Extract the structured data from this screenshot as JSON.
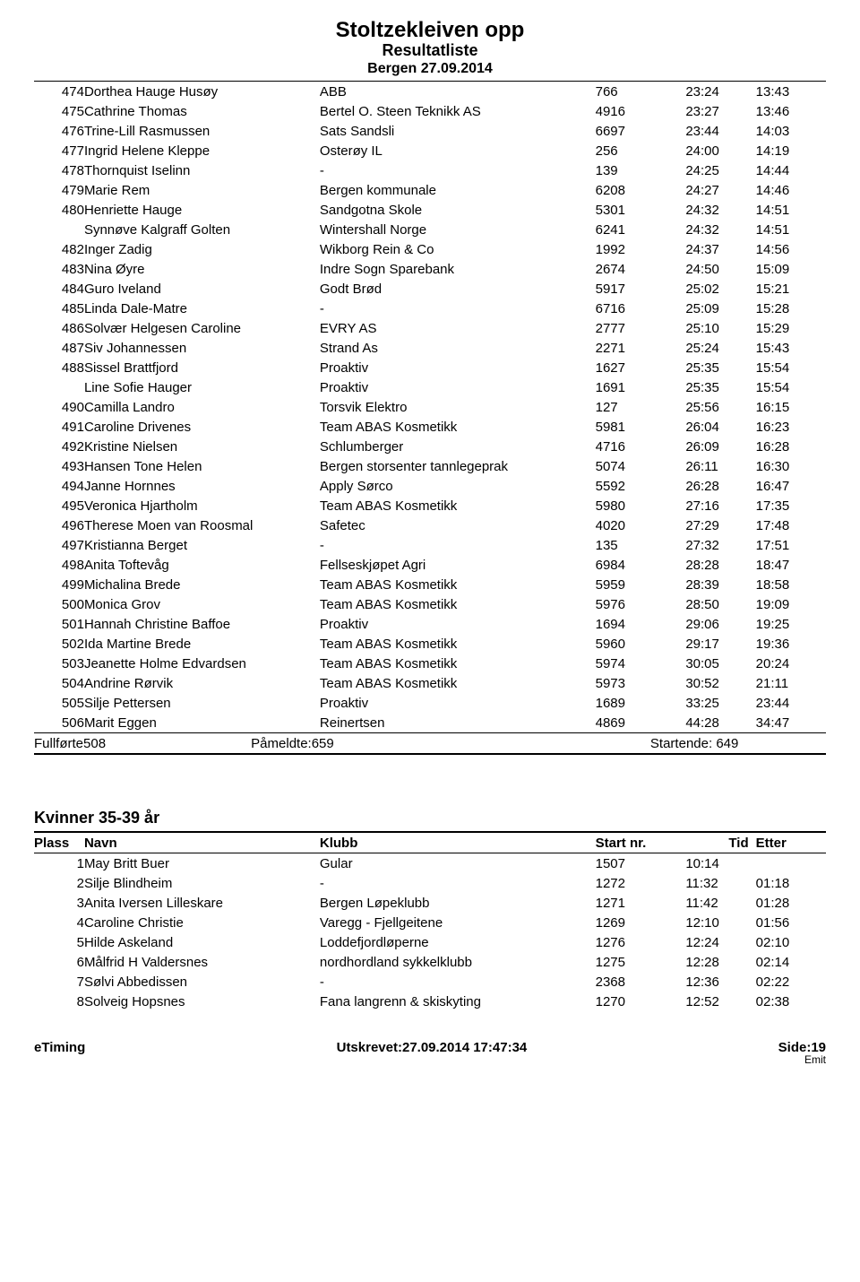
{
  "header": {
    "title": "Stoltzekleiven opp",
    "subtitle": "Resultatliste",
    "date": "Bergen 27.09.2014"
  },
  "columns": {
    "place": "Plass",
    "name": "Navn",
    "club": "Klubb",
    "start": "Start nr.",
    "time": "Tid",
    "diff": "Etter"
  },
  "main_results": [
    {
      "place": "474",
      "name": "Dorthea Hauge Husøy",
      "club": "ABB",
      "start": "766",
      "time": "23:24",
      "diff": "13:43"
    },
    {
      "place": "475",
      "name": "Cathrine Thomas",
      "club": "Bertel O. Steen Teknikk AS",
      "start": "4916",
      "time": "23:27",
      "diff": "13:46"
    },
    {
      "place": "476",
      "name": "Trine-Lill Rasmussen",
      "club": "Sats Sandsli",
      "start": "6697",
      "time": "23:44",
      "diff": "14:03"
    },
    {
      "place": "477",
      "name": "Ingrid Helene Kleppe",
      "club": "Osterøy IL",
      "start": "256",
      "time": "24:00",
      "diff": "14:19"
    },
    {
      "place": "478",
      "name": "Thornquist Iselinn",
      "club": "-",
      "start": "139",
      "time": "24:25",
      "diff": "14:44"
    },
    {
      "place": "479",
      "name": "Marie Rem",
      "club": "Bergen kommunale",
      "start": "6208",
      "time": "24:27",
      "diff": "14:46"
    },
    {
      "place": "480",
      "name": "Henriette Hauge",
      "club": "Sandgotna Skole",
      "start": "5301",
      "time": "24:32",
      "diff": "14:51"
    },
    {
      "place": "",
      "name": "Synnøve Kalgraff Golten",
      "club": "Wintershall Norge",
      "start": "6241",
      "time": "24:32",
      "diff": "14:51"
    },
    {
      "place": "482",
      "name": "Inger Zadig",
      "club": "Wikborg Rein & Co",
      "start": "1992",
      "time": "24:37",
      "diff": "14:56"
    },
    {
      "place": "483",
      "name": "Nina Øyre",
      "club": "Indre Sogn Sparebank",
      "start": "2674",
      "time": "24:50",
      "diff": "15:09"
    },
    {
      "place": "484",
      "name": "Guro Iveland",
      "club": "Godt Brød",
      "start": "5917",
      "time": "25:02",
      "diff": "15:21"
    },
    {
      "place": "485",
      "name": "Linda Dale-Matre",
      "club": "-",
      "start": "6716",
      "time": "25:09",
      "diff": "15:28"
    },
    {
      "place": "486",
      "name": "Solvær Helgesen Caroline",
      "club": "EVRY AS",
      "start": "2777",
      "time": "25:10",
      "diff": "15:29"
    },
    {
      "place": "487",
      "name": "Siv Johannessen",
      "club": "Strand As",
      "start": "2271",
      "time": "25:24",
      "diff": "15:43"
    },
    {
      "place": "488",
      "name": "Sissel Brattfjord",
      "club": "Proaktiv",
      "start": "1627",
      "time": "25:35",
      "diff": "15:54"
    },
    {
      "place": "",
      "name": "Line Sofie Hauger",
      "club": "Proaktiv",
      "start": "1691",
      "time": "25:35",
      "diff": "15:54"
    },
    {
      "place": "490",
      "name": "Camilla Landro",
      "club": "Torsvik Elektro",
      "start": "127",
      "time": "25:56",
      "diff": "16:15"
    },
    {
      "place": "491",
      "name": "Caroline Drivenes",
      "club": "Team ABAS Kosmetikk",
      "start": "5981",
      "time": "26:04",
      "diff": "16:23"
    },
    {
      "place": "492",
      "name": "Kristine Nielsen",
      "club": "Schlumberger",
      "start": "4716",
      "time": "26:09",
      "diff": "16:28"
    },
    {
      "place": "493",
      "name": "Hansen Tone Helen",
      "club": "Bergen storsenter tannlegeprak",
      "start": "5074",
      "time": "26:11",
      "diff": "16:30"
    },
    {
      "place": "494",
      "name": "Janne Hornnes",
      "club": "Apply Sørco",
      "start": "5592",
      "time": "26:28",
      "diff": "16:47"
    },
    {
      "place": "495",
      "name": "Veronica Hjartholm",
      "club": "Team ABAS Kosmetikk",
      "start": "5980",
      "time": "27:16",
      "diff": "17:35"
    },
    {
      "place": "496",
      "name": "Therese Moen van Roosmal",
      "club": "Safetec",
      "start": "4020",
      "time": "27:29",
      "diff": "17:48"
    },
    {
      "place": "497",
      "name": "Kristianna Berget",
      "club": "-",
      "start": "135",
      "time": "27:32",
      "diff": "17:51"
    },
    {
      "place": "498",
      "name": "Anita Toftevåg",
      "club": "Fellseskjøpet Agri",
      "start": "6984",
      "time": "28:28",
      "diff": "18:47"
    },
    {
      "place": "499",
      "name": "Michalina Brede",
      "club": "Team ABAS Kosmetikk",
      "start": "5959",
      "time": "28:39",
      "diff": "18:58"
    },
    {
      "place": "500",
      "name": "Monica Grov",
      "club": "Team ABAS Kosmetikk",
      "start": "5976",
      "time": "28:50",
      "diff": "19:09"
    },
    {
      "place": "501",
      "name": "Hannah Christine Baffoe",
      "club": "Proaktiv",
      "start": "1694",
      "time": "29:06",
      "diff": "19:25"
    },
    {
      "place": "502",
      "name": "Ida Martine Brede",
      "club": "Team ABAS Kosmetikk",
      "start": "5960",
      "time": "29:17",
      "diff": "19:36"
    },
    {
      "place": "503",
      "name": "Jeanette Holme Edvardsen",
      "club": "Team ABAS Kosmetikk",
      "start": "5974",
      "time": "30:05",
      "diff": "20:24"
    },
    {
      "place": "504",
      "name": "Andrine Rørvik",
      "club": "Team ABAS Kosmetikk",
      "start": "5973",
      "time": "30:52",
      "diff": "21:11"
    },
    {
      "place": "505",
      "name": "Silje Pettersen",
      "club": "Proaktiv",
      "start": "1689",
      "time": "33:25",
      "diff": "23:44"
    },
    {
      "place": "506",
      "name": "Marit Eggen",
      "club": "Reinertsen",
      "start": "4869",
      "time": "44:28",
      "diff": "34:47"
    }
  ],
  "summary": {
    "completed_label": "Fullførte",
    "completed": "508",
    "registered_label": "Påmeldte:",
    "registered": "659",
    "started_label": "Startende:",
    "started": "649"
  },
  "section2": {
    "title": "Kvinner 35-39 år",
    "rows": [
      {
        "place": "1",
        "name": "May Britt Buer",
        "club": "Gular",
        "start": "1507",
        "time": "10:14",
        "diff": ""
      },
      {
        "place": "2",
        "name": "Silje Blindheim",
        "club": "-",
        "start": "1272",
        "time": "11:32",
        "diff": "01:18"
      },
      {
        "place": "3",
        "name": "Anita Iversen Lilleskare",
        "club": "Bergen Løpeklubb",
        "start": "1271",
        "time": "11:42",
        "diff": "01:28"
      },
      {
        "place": "4",
        "name": "Caroline Christie",
        "club": "Varegg - Fjellgeitene",
        "start": "1269",
        "time": "12:10",
        "diff": "01:56"
      },
      {
        "place": "5",
        "name": "Hilde Askeland",
        "club": "Loddefjordløperne",
        "start": "1276",
        "time": "12:24",
        "diff": "02:10"
      },
      {
        "place": "6",
        "name": "Målfrid H Valdersnes",
        "club": "nordhordland sykkelklubb",
        "start": "1275",
        "time": "12:28",
        "diff": "02:14"
      },
      {
        "place": "7",
        "name": "Sølvi Abbedissen",
        "club": "-",
        "start": "2368",
        "time": "12:36",
        "diff": "02:22"
      },
      {
        "place": "8",
        "name": "Solveig Hopsnes",
        "club": "Fana langrenn & skiskyting",
        "start": "1270",
        "time": "12:52",
        "diff": "02:38"
      }
    ]
  },
  "footer": {
    "left": "eTiming",
    "center": "Utskrevet:27.09.2014 17:47:34",
    "right": "Side:19",
    "emit": "Emit"
  }
}
